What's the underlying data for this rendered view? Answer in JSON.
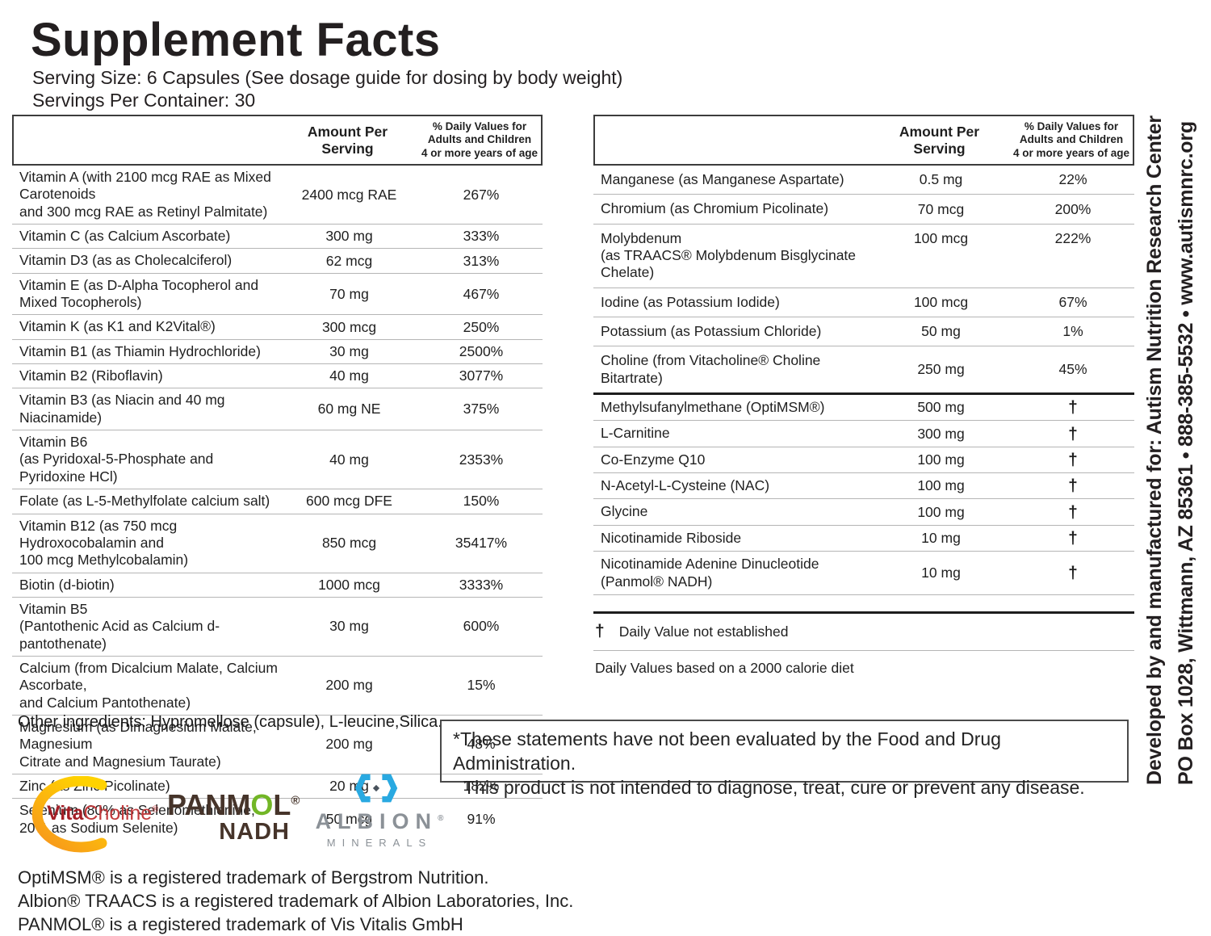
{
  "title": "Supplement Facts",
  "serving_size": "Serving Size: 6 Capsules (See dosage guide for dosing by body weight)",
  "servings_per_container": "Servings Per Container: 30",
  "column_headers": {
    "amount": "Amount Per\nServing",
    "daily_value": "% Daily Values for\nAdults and Children\n4 or more years of age"
  },
  "left_table": {
    "rows": [
      {
        "name": "Vitamin A (with 2100 mcg RAE as Mixed Carotenoids\nand 300 mcg RAE as Retinyl Palmitate)",
        "amount": "2400 mcg RAE",
        "dv": "267%"
      },
      {
        "name": "Vitamin C (as Calcium Ascorbate)",
        "amount": "300 mg",
        "dv": "333%"
      },
      {
        "name": "Vitamin D3 (as as Cholecalciferol)",
        "amount": "62 mcg",
        "dv": "313%"
      },
      {
        "name": "Vitamin E (as D-Alpha Tocopherol and Mixed Tocopherols)",
        "amount": "70 mg",
        "dv": "467%"
      },
      {
        "name": "Vitamin K (as K1 and K2Vital®)",
        "amount": "300 mcg",
        "dv": "250%"
      },
      {
        "name": "Vitamin B1 (as Thiamin Hydrochloride)",
        "amount": "30 mg",
        "dv": "2500%"
      },
      {
        "name": "Vitamin B2 (Riboflavin)",
        "amount": "40 mg",
        "dv": "3077%"
      },
      {
        "name": "Vitamin B3 (as Niacin and 40 mg Niacinamide)",
        "amount": "60 mg NE",
        "dv": "375%"
      },
      {
        "name": "Vitamin B6\n(as Pyridoxal-5-Phosphate and Pyridoxine HCl)",
        "amount": "40 mg",
        "dv": "2353%"
      },
      {
        "name": "Folate (as L-5-Methylfolate calcium salt)",
        "amount": "600 mcg DFE",
        "dv": "150%"
      },
      {
        "name": "Vitamin B12 (as 750 mcg Hydroxocobalamin and\n100 mcg Methylcobalamin)",
        "amount": "850 mcg",
        "dv": "35417%"
      },
      {
        "name": "Biotin (d-biotin)",
        "amount": "1000 mcg",
        "dv": "3333%"
      },
      {
        "name": "Vitamin B5\n(Pantothenic Acid as Calcium d-pantothenate)",
        "amount": "30 mg",
        "dv": "600%"
      },
      {
        "name": "Calcium (from Dicalcium Malate, Calcium Ascorbate,\nand Calcium Pantothenate)",
        "amount": "200 mg",
        "dv": "15%"
      },
      {
        "name": "Magnesium (as Dimagnesium Malate, Magnesium\nCitrate and Magnesium Taurate)",
        "amount": "200 mg",
        "dv": "48%"
      },
      {
        "name": "Zinc (as Zinc Picolinate)",
        "amount": "20 mg",
        "dv": "182%"
      },
      {
        "name": "Selenium (80% as Selenomethionine,\n20% as Sodium Selenite)",
        "amount": "50 mcg",
        "dv": "91%"
      }
    ]
  },
  "right_table": {
    "rows_with_dv": [
      {
        "name": "Manganese (as Manganese Aspartate)",
        "amount": "0.5 mg",
        "dv": "22%"
      },
      {
        "name": "Chromium (as Chromium Picolinate)",
        "amount": "70 mcg",
        "dv": "200%"
      },
      {
        "name": "Molybdenum\n(as TRAACS® Molybdenum Bisglycinate Chelate)",
        "amount": "100 mcg",
        "dv": "222%"
      },
      {
        "name": "Iodine (as Potassium Iodide)",
        "amount": "100 mcg",
        "dv": "67%"
      },
      {
        "name": "Potassium (as Potassium Chloride)",
        "amount": "50 mg",
        "dv": "1%"
      },
      {
        "name": "Choline (from Vitacholine® Choline Bitartrate)",
        "amount": "250 mg",
        "dv": "45%"
      }
    ],
    "rows_no_dv": [
      {
        "name": "Methylsufanylmethane (OptiMSM®)",
        "amount": "500 mg",
        "dv": "†"
      },
      {
        "name": "L-Carnitine",
        "amount": "300 mg",
        "dv": "†"
      },
      {
        "name": "Co-Enzyme Q10",
        "amount": "100 mg",
        "dv": "†"
      },
      {
        "name": "N-Acetyl-L-Cysteine (NAC)",
        "amount": "100 mg",
        "dv": "†"
      },
      {
        "name": "Glycine",
        "amount": "100 mg",
        "dv": "†"
      },
      {
        "name": "Nicotinamide Riboside",
        "amount": "10 mg",
        "dv": "†"
      },
      {
        "name": "Nicotinamide Adenine Dinucleotide (Panmol® NADH)",
        "amount": "10 mg",
        "dv": "†"
      }
    ],
    "dagger_symbol": "†",
    "footnote_dagger": "Daily Value not established",
    "footnote_calorie": "Daily Values based on a 2000 calorie diet"
  },
  "other_ingredients": "Other ingredients: Hypromellose (capsule), L-leucine,Silica.",
  "disclaimer": {
    "line1": "*These statements have not been evaluated by the Food and Drug Administration.",
    "line2": "This product is not intended to diagnose, treat, cure or prevent any disease."
  },
  "logos": {
    "vitacholine": {
      "part1": "Vita",
      "part2": "Choline",
      "reg": "®",
      "swoosh_color": "#f5a11c",
      "text_color": "#a41e26"
    },
    "panmol": {
      "p1": "PANM",
      "o": "O",
      "l": "L",
      "reg": "®",
      "line2": "NADH",
      "brown": "#46342a",
      "green": "#72b626"
    },
    "albion": {
      "name": "ALBION",
      "reg": "®",
      "sub": "MINERALS",
      "blue": "#29a9e1",
      "gray": "#8b9197"
    }
  },
  "trademark_lines": [
    "OptiMSM® is a registered trademark of Bergstrom Nutrition.",
    "Albion® TRAACS is a registered trademark of Albion Laboratories, Inc.",
    "PANMOL® is a registered trademark of Vis Vitalis GmbH"
  ],
  "vertical_text": {
    "line1": "Developed by and manufactured for: Autism Nutrition Research Center",
    "line2": "PO Box 1028, Wittmann, AZ 85361  •  888-385-5532  •  www.autismnrc.org"
  }
}
